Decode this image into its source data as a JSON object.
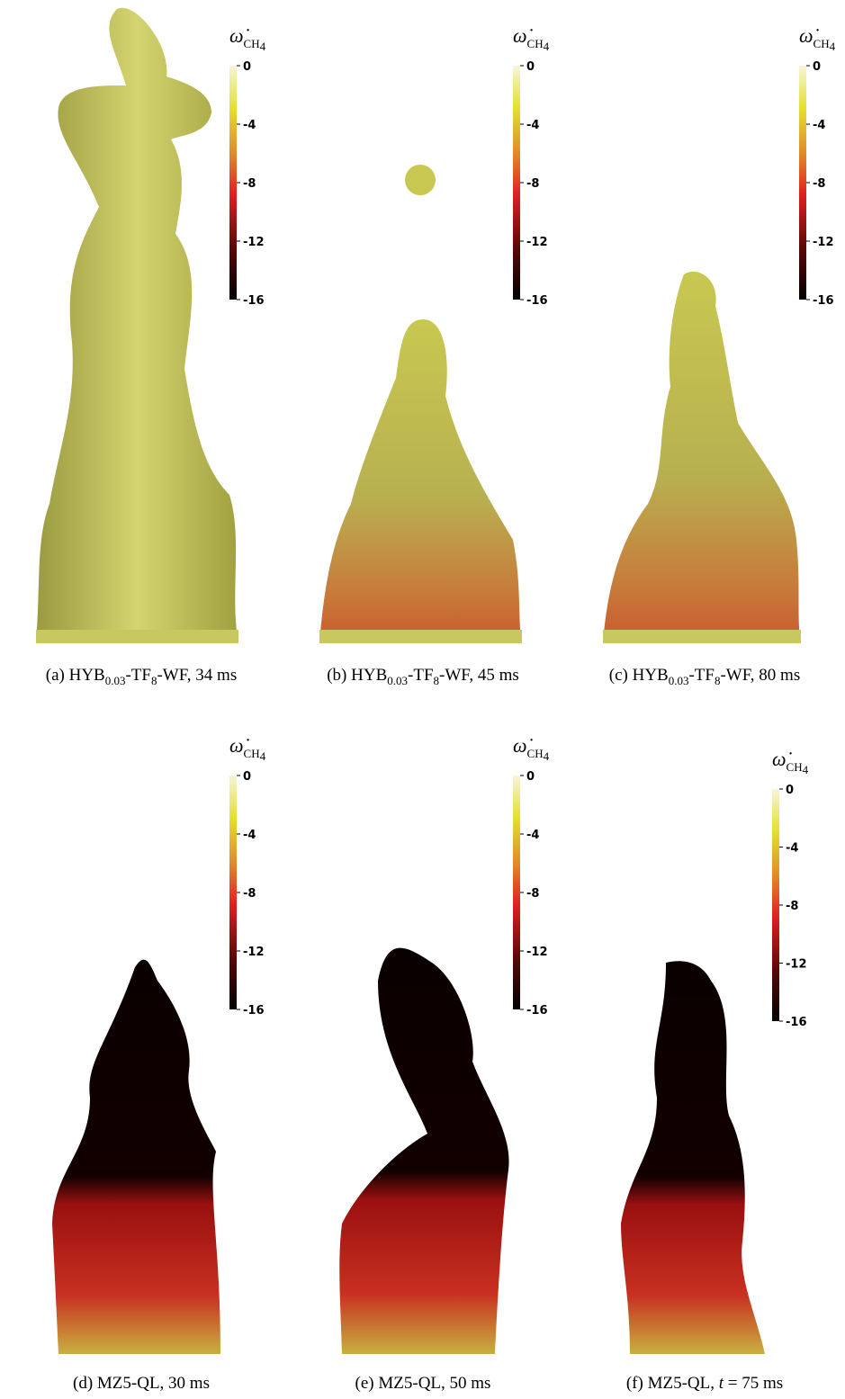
{
  "colorbar": {
    "symbol": "ω̇",
    "sub": "CH",
    "subsub": "4",
    "ticks": [
      0,
      -4,
      -8,
      -12,
      -16
    ]
  },
  "panels": [
    {
      "label": "(a)",
      "name": "HYB",
      "sub1": "0.03",
      "mid": "-TF",
      "sub2": "8",
      "rest": "-WF, 34 ms"
    },
    {
      "label": "(b)",
      "name": "HYB",
      "sub1": "0.03",
      "mid": "-TF",
      "sub2": "8",
      "rest": "-WF, 45 ms"
    },
    {
      "label": "(c)",
      "name": "HYB",
      "sub1": "0.03",
      "mid": "-TF",
      "sub2": "8",
      "rest": "-WF, 80 ms"
    },
    {
      "label": "(d)",
      "rest": "MZ5-QL, 30 ms"
    },
    {
      "label": "(e)",
      "rest": "MZ5-QL, 50 ms"
    },
    {
      "label": "(f)",
      "rest": "MZ5-QL, ",
      "italic": "t",
      "tail": " = 75 ms"
    }
  ]
}
